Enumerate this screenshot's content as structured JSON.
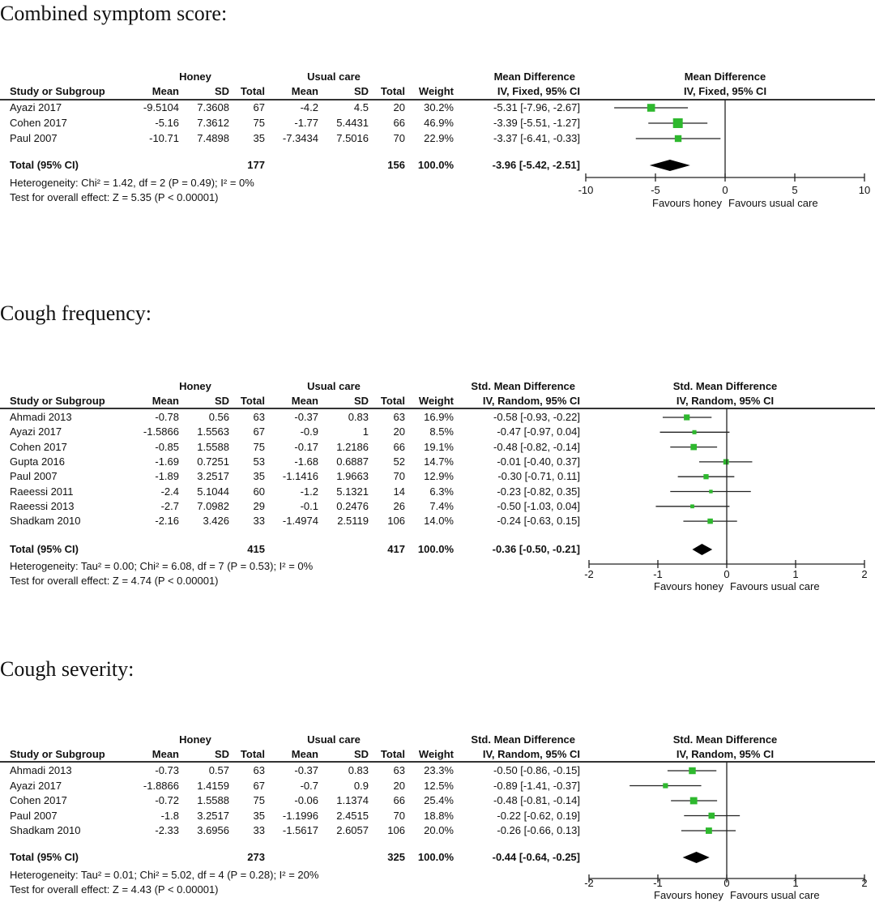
{
  "colors": {
    "marker": "#2eb82e",
    "line": "#222222",
    "diamond": "#000000"
  },
  "column_headers": {
    "study": "Study or Subgroup",
    "honey": "Honey",
    "usual_care": "Usual care",
    "mean": "Mean",
    "sd": "SD",
    "total": "Total",
    "weight": "Weight"
  },
  "chart_data": [
    {
      "type": "forest",
      "title": "Combined symptom score:",
      "effect_header": "Mean Difference",
      "method": "IV, Fixed, 95% CI",
      "xlim": [
        -10,
        10
      ],
      "ticks": [
        "-10",
        "-5",
        "0",
        "5",
        "10"
      ],
      "tick_values": [
        -10,
        -5,
        0,
        5,
        10
      ],
      "favours_left": "Favours honey",
      "favours_right": "Favours usual care",
      "studies": [
        {
          "name": "Ayazi 2017",
          "h_mean": "-9.5104",
          "h_sd": "7.3608",
          "h_n": "67",
          "c_mean": "-4.2",
          "c_sd": "4.5",
          "c_n": "20",
          "weight": "30.2%",
          "w": 30.2,
          "ci_text": "-5.31 [-7.96, -2.67]",
          "est": -5.31,
          "lo": -7.96,
          "hi": -2.67
        },
        {
          "name": "Cohen 2017",
          "h_mean": "-5.16",
          "h_sd": "7.3612",
          "h_n": "75",
          "c_mean": "-1.77",
          "c_sd": "5.4431",
          "c_n": "66",
          "weight": "46.9%",
          "w": 46.9,
          "ci_text": "-3.39 [-5.51, -1.27]",
          "est": -3.39,
          "lo": -5.51,
          "hi": -1.27
        },
        {
          "name": "Paul 2007",
          "h_mean": "-10.71",
          "h_sd": "7.4898",
          "h_n": "35",
          "c_mean": "-7.3434",
          "c_sd": "7.5016",
          "c_n": "70",
          "weight": "22.9%",
          "w": 22.9,
          "ci_text": "-3.37 [-6.41, -0.33]",
          "est": -3.37,
          "lo": -6.41,
          "hi": -0.33
        }
      ],
      "total": {
        "label": "Total (95% CI)",
        "h_n": "177",
        "c_n": "156",
        "weight": "100.0%",
        "ci_text": "-3.96 [-5.42, -2.51]",
        "est": -3.96,
        "lo": -5.42,
        "hi": -2.51
      },
      "heterogeneity": "Heterogeneity: Chi² = 1.42, df = 2 (P = 0.49); I² = 0%",
      "overall": "Test for overall effect: Z = 5.35 (P < 0.00001)"
    },
    {
      "type": "forest",
      "title": "Cough frequency:",
      "effect_header": "Std. Mean Difference",
      "method": "IV, Random, 95% CI",
      "xlim": [
        -2,
        2
      ],
      "ticks": [
        "-2",
        "-1",
        "0",
        "1",
        "2"
      ],
      "tick_values": [
        -2,
        -1,
        0,
        1,
        2
      ],
      "favours_left": "Favours honey",
      "favours_right": "Favours usual care",
      "studies": [
        {
          "name": "Ahmadi 2013",
          "h_mean": "-0.78",
          "h_sd": "0.56",
          "h_n": "63",
          "c_mean": "-0.37",
          "c_sd": "0.83",
          "c_n": "63",
          "weight": "16.9%",
          "w": 16.9,
          "ci_text": "-0.58 [-0.93, -0.22]",
          "est": -0.58,
          "lo": -0.93,
          "hi": -0.22
        },
        {
          "name": "Ayazi 2017",
          "h_mean": "-1.5866",
          "h_sd": "1.5563",
          "h_n": "67",
          "c_mean": "-0.9",
          "c_sd": "1",
          "c_n": "20",
          "weight": "8.5%",
          "w": 8.5,
          "ci_text": "-0.47 [-0.97, 0.04]",
          "est": -0.47,
          "lo": -0.97,
          "hi": 0.04
        },
        {
          "name": "Cohen 2017",
          "h_mean": "-0.85",
          "h_sd": "1.5588",
          "h_n": "75",
          "c_mean": "-0.17",
          "c_sd": "1.2186",
          "c_n": "66",
          "weight": "19.1%",
          "w": 19.1,
          "ci_text": "-0.48 [-0.82, -0.14]",
          "est": -0.48,
          "lo": -0.82,
          "hi": -0.14
        },
        {
          "name": "Gupta 2016",
          "h_mean": "-1.69",
          "h_sd": "0.7251",
          "h_n": "53",
          "c_mean": "-1.68",
          "c_sd": "0.6887",
          "c_n": "52",
          "weight": "14.7%",
          "w": 14.7,
          "ci_text": "-0.01 [-0.40, 0.37]",
          "est": -0.01,
          "lo": -0.4,
          "hi": 0.37
        },
        {
          "name": "Paul 2007",
          "h_mean": "-1.89",
          "h_sd": "3.2517",
          "h_n": "35",
          "c_mean": "-1.1416",
          "c_sd": "1.9663",
          "c_n": "70",
          "weight": "12.9%",
          "w": 12.9,
          "ci_text": "-0.30 [-0.71, 0.11]",
          "est": -0.3,
          "lo": -0.71,
          "hi": 0.11
        },
        {
          "name": "Raeessi 2011",
          "h_mean": "-2.4",
          "h_sd": "5.1044",
          "h_n": "60",
          "c_mean": "-1.2",
          "c_sd": "5.1321",
          "c_n": "14",
          "weight": "6.3%",
          "w": 6.3,
          "ci_text": "-0.23 [-0.82, 0.35]",
          "est": -0.23,
          "lo": -0.82,
          "hi": 0.35
        },
        {
          "name": "Raeessi 2013",
          "h_mean": "-2.7",
          "h_sd": "7.0982",
          "h_n": "29",
          "c_mean": "-0.1",
          "c_sd": "0.2476",
          "c_n": "26",
          "weight": "7.4%",
          "w": 7.4,
          "ci_text": "-0.50 [-1.03, 0.04]",
          "est": -0.5,
          "lo": -1.03,
          "hi": 0.04
        },
        {
          "name": "Shadkam 2010",
          "h_mean": "-2.16",
          "h_sd": "3.426",
          "h_n": "33",
          "c_mean": "-1.4974",
          "c_sd": "2.5119",
          "c_n": "106",
          "weight": "14.0%",
          "w": 14.0,
          "ci_text": "-0.24 [-0.63, 0.15]",
          "est": -0.24,
          "lo": -0.63,
          "hi": 0.15
        }
      ],
      "total": {
        "label": "Total (95% CI)",
        "h_n": "415",
        "c_n": "417",
        "weight": "100.0%",
        "ci_text": "-0.36 [-0.50, -0.21]",
        "est": -0.36,
        "lo": -0.5,
        "hi": -0.21
      },
      "heterogeneity": "Heterogeneity: Tau² = 0.00; Chi² = 6.08, df = 7 (P = 0.53); I² = 0%",
      "overall": "Test for overall effect: Z = 4.74 (P < 0.00001)"
    },
    {
      "type": "forest",
      "title": "Cough severity:",
      "effect_header": "Std. Mean Difference",
      "method": "IV, Random, 95% CI",
      "xlim": [
        -2,
        2
      ],
      "ticks": [
        "-2",
        "-1",
        "0",
        "1",
        "2"
      ],
      "tick_values": [
        -2,
        -1,
        0,
        1,
        2
      ],
      "favours_left": "Favours honey",
      "favours_right": "Favours usual care",
      "studies": [
        {
          "name": "Ahmadi 2013",
          "h_mean": "-0.73",
          "h_sd": "0.57",
          "h_n": "63",
          "c_mean": "-0.37",
          "c_sd": "0.83",
          "c_n": "63",
          "weight": "23.3%",
          "w": 23.3,
          "ci_text": "-0.50 [-0.86, -0.15]",
          "est": -0.5,
          "lo": -0.86,
          "hi": -0.15
        },
        {
          "name": "Ayazi 2017",
          "h_mean": "-1.8866",
          "h_sd": "1.4159",
          "h_n": "67",
          "c_mean": "-0.7",
          "c_sd": "0.9",
          "c_n": "20",
          "weight": "12.5%",
          "w": 12.5,
          "ci_text": "-0.89 [-1.41, -0.37]",
          "est": -0.89,
          "lo": -1.41,
          "hi": -0.37
        },
        {
          "name": "Cohen 2017",
          "h_mean": "-0.72",
          "h_sd": "1.5588",
          "h_n": "75",
          "c_mean": "-0.06",
          "c_sd": "1.1374",
          "c_n": "66",
          "weight": "25.4%",
          "w": 25.4,
          "ci_text": "-0.48 [-0.81, -0.14]",
          "est": -0.48,
          "lo": -0.81,
          "hi": -0.14
        },
        {
          "name": "Paul 2007",
          "h_mean": "-1.8",
          "h_sd": "3.2517",
          "h_n": "35",
          "c_mean": "-1.1996",
          "c_sd": "2.4515",
          "c_n": "70",
          "weight": "18.8%",
          "w": 18.8,
          "ci_text": "-0.22 [-0.62, 0.19]",
          "est": -0.22,
          "lo": -0.62,
          "hi": 0.19
        },
        {
          "name": "Shadkam 2010",
          "h_mean": "-2.33",
          "h_sd": "3.6956",
          "h_n": "33",
          "c_mean": "-1.5617",
          "c_sd": "2.6057",
          "c_n": "106",
          "weight": "20.0%",
          "w": 20.0,
          "ci_text": "-0.26 [-0.66, 0.13]",
          "est": -0.26,
          "lo": -0.66,
          "hi": 0.13
        }
      ],
      "total": {
        "label": "Total (95% CI)",
        "h_n": "273",
        "c_n": "325",
        "weight": "100.0%",
        "ci_text": "-0.44 [-0.64, -0.25]",
        "est": -0.44,
        "lo": -0.64,
        "hi": -0.25
      },
      "heterogeneity": "Heterogeneity: Tau² = 0.01; Chi² = 5.02, df = 4 (P = 0.28); I² = 20%",
      "overall": "Test for overall effect: Z = 4.43 (P < 0.00001)"
    }
  ]
}
